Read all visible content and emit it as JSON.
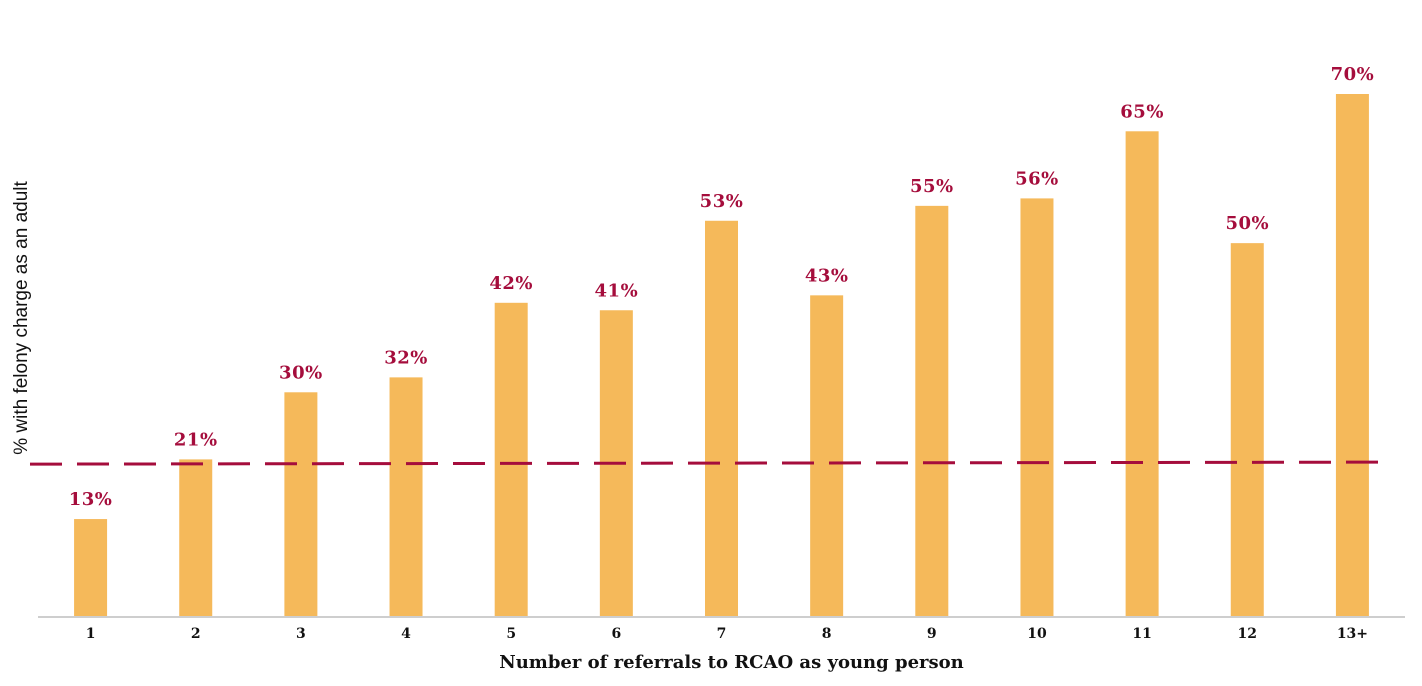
{
  "chart_data": {
    "type": "bar",
    "title": "",
    "xlabel": "Number of referrals to RCAO as young person",
    "ylabel": "% with felony charge as an adult",
    "categories": [
      "1",
      "2",
      "3",
      "4",
      "5",
      "6",
      "7",
      "8",
      "9",
      "10",
      "11",
      "12",
      "13+"
    ],
    "values": [
      13,
      21,
      30,
      32,
      42,
      41,
      53,
      43,
      55,
      56,
      65,
      50,
      70
    ],
    "data_labels": [
      "13%",
      "21%",
      "30%",
      "32%",
      "42%",
      "41%",
      "53%",
      "43%",
      "55%",
      "56%",
      "65%",
      "50%",
      "70%"
    ],
    "ylim": [
      0,
      70
    ],
    "reference_line": {
      "value": 20.5,
      "style": "dashed"
    },
    "grid": false,
    "legend": "none",
    "colors": {
      "bar": "#f5b95a",
      "label": "#a50d3c",
      "reference_line": "#a50d3c",
      "axis": "#bdbdbd"
    }
  }
}
